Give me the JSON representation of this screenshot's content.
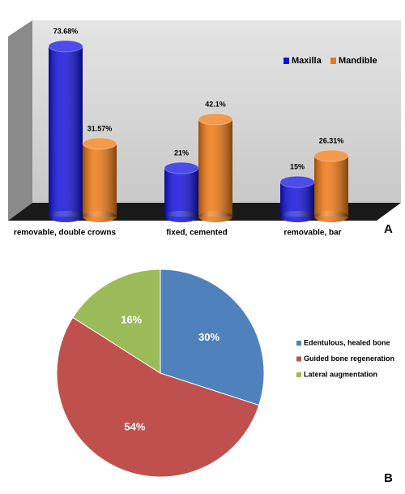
{
  "chart_data": [
    {
      "type": "bar3d",
      "panel_label": "A",
      "categories": [
        "removable, double crowns",
        "fixed, cemented",
        "removable, bar"
      ],
      "series": [
        {
          "name": "Maxilla",
          "color": "#1010e0",
          "values": [
            73.68,
            21,
            15
          ],
          "value_labels": [
            "73.68%",
            "21%",
            "15%"
          ]
        },
        {
          "name": "Mandible",
          "color": "#f07810",
          "values": [
            31.57,
            42.1,
            26.31
          ],
          "value_labels": [
            "31.57%",
            "42.1%",
            "26.31%"
          ]
        }
      ],
      "legend": "top-right"
    },
    {
      "type": "pie",
      "panel_label": "B",
      "categories": [
        "Edentulous, healed bone",
        "Guided bone regeneration",
        "Lateral augmentation"
      ],
      "values": [
        30,
        54,
        16
      ],
      "value_labels": [
        "30%",
        "54%",
        "16%"
      ],
      "colors": [
        "#4f81bd",
        "#c0504d",
        "#9bbb59"
      ],
      "legend": "right"
    }
  ]
}
